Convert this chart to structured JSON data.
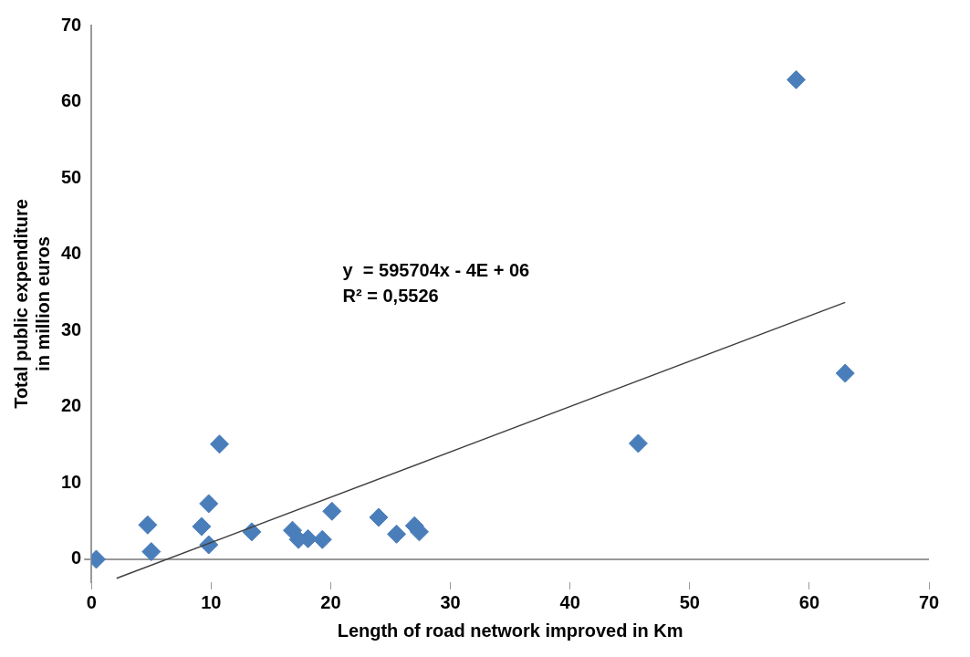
{
  "chart_data": {
    "type": "scatter",
    "xlabel": "Length of road network improved in Km",
    "ylabel": "Total public expenditure\nin million euros",
    "series": [
      {
        "color": "#4a7ebb",
        "marker": "diamond",
        "x": [
          0.4,
          4.7,
          5.0,
          9.2,
          9.8,
          9.8,
          10.7,
          13.4,
          16.8,
          17.3,
          18.1,
          19.3,
          20.1,
          24.0,
          25.5,
          27.0,
          27.4,
          45.7,
          58.9,
          63.0
        ],
        "values": [
          0,
          4.5,
          1.0,
          4.3,
          7.3,
          1.9,
          15.1,
          3.6,
          3.8,
          2.6,
          2.7,
          2.6,
          6.3,
          5.5,
          3.3,
          4.4,
          3.6,
          15.2,
          62.9,
          24.4
        ]
      },
      {
        "type": "line",
        "color": "#404040",
        "marker": "none",
        "x": [
          2.1,
          63.0
        ],
        "values": [
          -2.5,
          33.7
        ]
      }
    ],
    "xlim": [
      0,
      70
    ],
    "xticks": [
      0,
      10,
      20,
      30,
      40,
      50,
      60,
      70
    ],
    "ylim": [
      -3,
      70
    ],
    "yticks": [
      0,
      10,
      20,
      30,
      40,
      50,
      60,
      70
    ],
    "grid": false,
    "legend": false,
    "annotations": [
      "y  = 595704x - 4E + 06",
      "R² = 0,5526"
    ]
  }
}
